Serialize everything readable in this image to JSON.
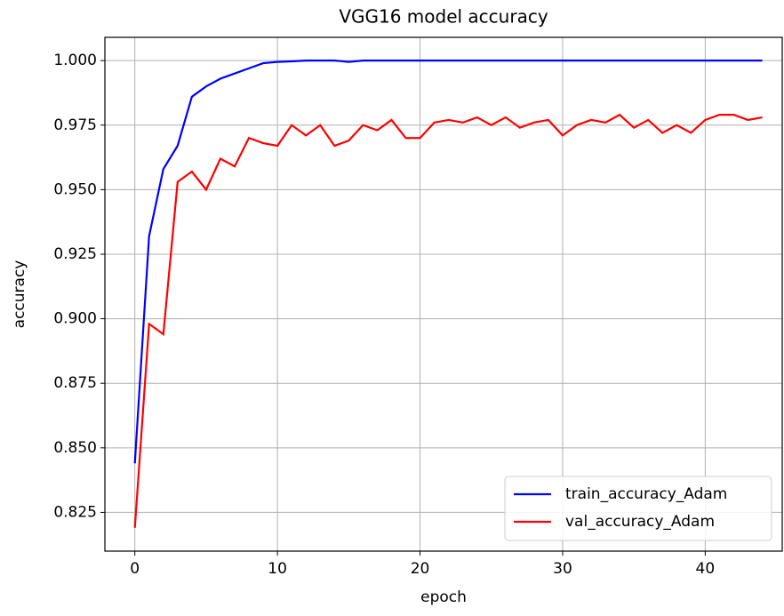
{
  "chart_data": {
    "type": "line",
    "title": "VGG16 model accuracy",
    "xlabel": "epoch",
    "ylabel": "accuracy",
    "x": [
      0,
      1,
      2,
      3,
      4,
      5,
      6,
      7,
      8,
      9,
      10,
      11,
      12,
      13,
      14,
      15,
      16,
      17,
      18,
      19,
      20,
      21,
      22,
      23,
      24,
      25,
      26,
      27,
      28,
      29,
      30,
      31,
      32,
      33,
      34,
      35,
      36,
      37,
      38,
      39,
      40,
      41,
      42,
      43,
      44
    ],
    "series": [
      {
        "name": "train_accuracy_Adam",
        "color": "#0000ff",
        "values": [
          0.844,
          0.932,
          0.958,
          0.967,
          0.986,
          0.99,
          0.993,
          0.995,
          0.997,
          0.999,
          0.9995,
          0.9997,
          1.0,
          1.0,
          1.0,
          0.9995,
          1.0,
          1.0,
          1.0,
          1.0,
          1.0,
          1.0,
          1.0,
          1.0,
          1.0,
          1.0,
          1.0,
          1.0,
          1.0,
          1.0,
          1.0,
          1.0,
          1.0,
          1.0,
          1.0,
          1.0,
          1.0,
          1.0,
          1.0,
          1.0,
          1.0,
          1.0,
          1.0,
          1.0,
          1.0
        ]
      },
      {
        "name": "val_accuracy_Adam",
        "color": "#ff0000",
        "values": [
          0.819,
          0.898,
          0.894,
          0.953,
          0.957,
          0.95,
          0.962,
          0.959,
          0.97,
          0.968,
          0.967,
          0.975,
          0.971,
          0.975,
          0.967,
          0.969,
          0.975,
          0.973,
          0.977,
          0.97,
          0.97,
          0.976,
          0.977,
          0.976,
          0.978,
          0.975,
          0.978,
          0.974,
          0.976,
          0.977,
          0.971,
          0.975,
          0.977,
          0.976,
          0.979,
          0.974,
          0.977,
          0.972,
          0.975,
          0.972,
          0.977,
          0.979,
          0.979,
          0.977,
          0.978
        ]
      }
    ],
    "xlim": [
      -2.1,
      45.4
    ],
    "xticks": [
      0,
      10,
      20,
      30,
      40
    ],
    "ylim": [
      0.81,
      1.009
    ],
    "yticks": [
      {
        "value": 0.825,
        "label": "0.825"
      },
      {
        "value": 0.85,
        "label": "0.850"
      },
      {
        "value": 0.875,
        "label": "0.875"
      },
      {
        "value": 0.9,
        "label": "0.900"
      },
      {
        "value": 0.925,
        "label": "0.925"
      },
      {
        "value": 0.95,
        "label": "0.950"
      },
      {
        "value": 0.975,
        "label": "0.975"
      },
      {
        "value": 1.0,
        "label": "1.000"
      }
    ],
    "grid": true,
    "legend": "lower right"
  }
}
